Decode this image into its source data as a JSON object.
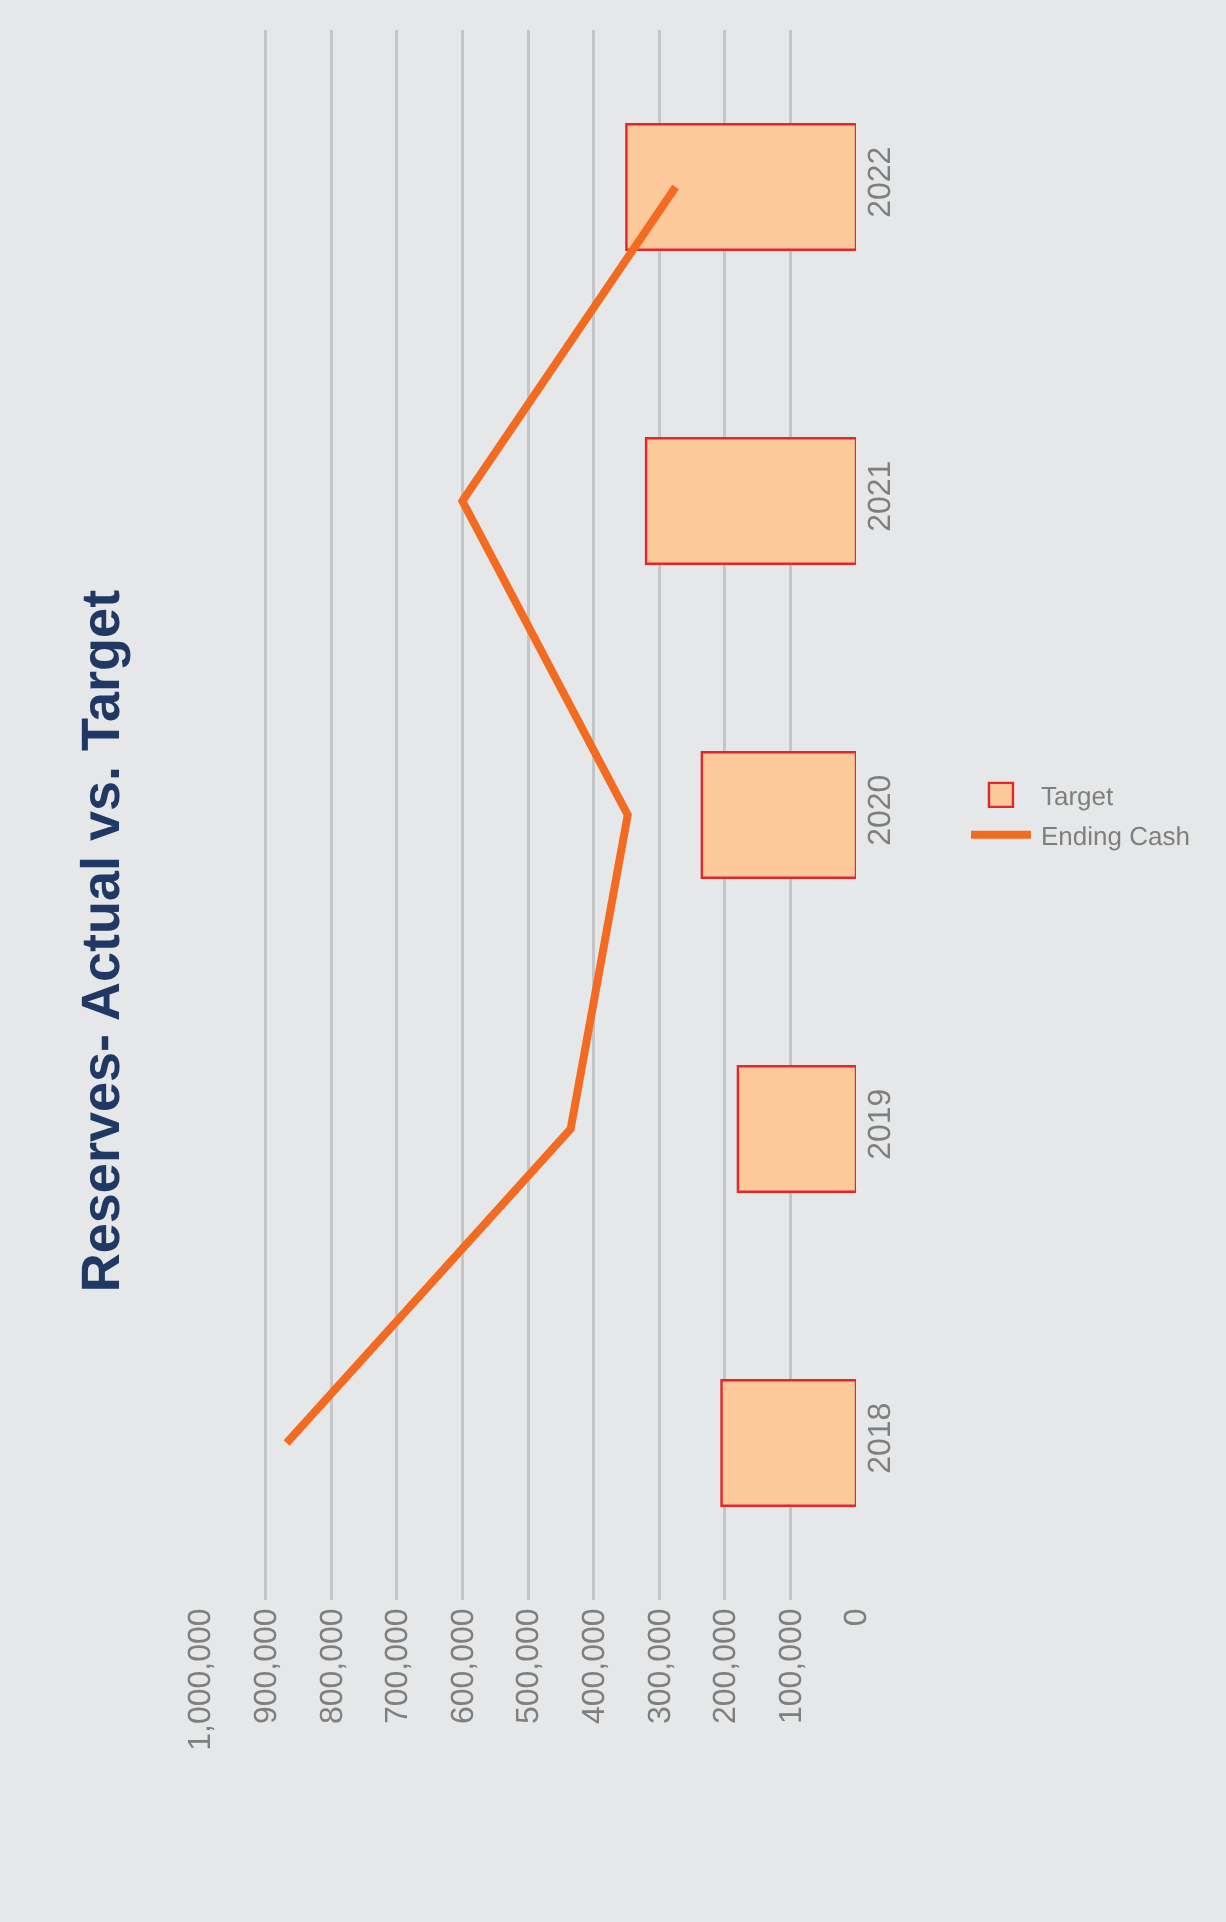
{
  "chart_data": {
    "type": "bar",
    "title": "Reserves- Actual vs. Target",
    "orientation": "horizontal",
    "categories": [
      "2022",
      "2021",
      "2020",
      "2019",
      "2018"
    ],
    "series": [
      {
        "name": "Target",
        "color": "#fdc89a",
        "values": [
          350000,
          320000,
          235000,
          180000,
          205000
        ]
      },
      {
        "name": "Ending Cash",
        "type": "line",
        "color": "#f26b21",
        "values": [
          275000,
          600000,
          348000,
          435000,
          868000
        ]
      }
    ],
    "xlim": [
      1000000,
      0
    ],
    "xticks": [
      {
        "value": 0,
        "label": "0"
      },
      {
        "value": 100000,
        "label": "100,000"
      },
      {
        "value": 200000,
        "label": "200,000"
      },
      {
        "value": 300000,
        "label": "300,000"
      },
      {
        "value": 400000,
        "label": "400,000"
      },
      {
        "value": 500000,
        "label": "500,000"
      },
      {
        "value": 600000,
        "label": "600,000"
      },
      {
        "value": 700000,
        "label": "700,000"
      },
      {
        "value": 800000,
        "label": "800,000"
      },
      {
        "value": 900000,
        "label": "900,000"
      },
      {
        "value": 1000000,
        "label": "1,000,000"
      }
    ],
    "grid": "x",
    "legend": "right",
    "marker": "none"
  }
}
